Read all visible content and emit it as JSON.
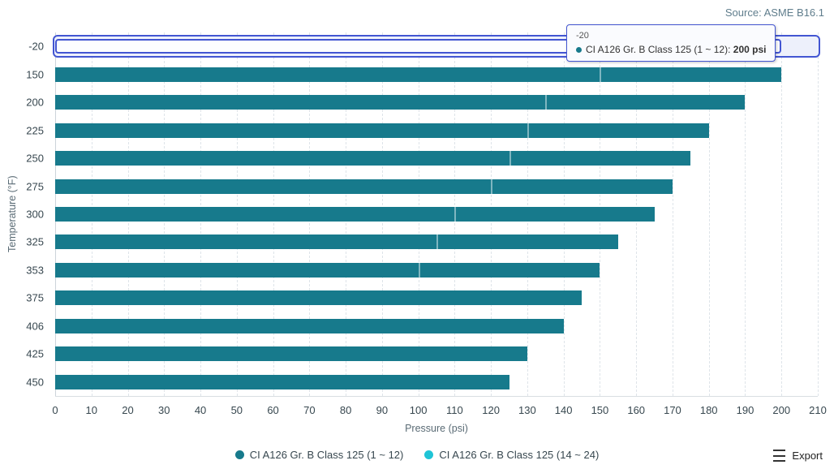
{
  "source": "Source: ASME B16.1",
  "export": {
    "label": "Export"
  },
  "tooltip": {
    "title": "-20",
    "series_label": "CI A126 Gr. B Class 125 (1 ~ 12)",
    "separator": ": ",
    "value": "200 psi"
  },
  "colors": {
    "series1": "#177a8c",
    "series2": "#1fc4d6",
    "hover_accent": "#4356d2",
    "grid": "#dee4e9",
    "text": "#37474f",
    "muted_text": "#5f7d8c"
  },
  "chart_data": {
    "type": "bar",
    "orientation": "horizontal",
    "title": "",
    "xlabel": "Pressure (psi)",
    "ylabel": "Temperature (°F)",
    "xlim": [
      0,
      210
    ],
    "x_ticks": [
      0,
      10,
      20,
      30,
      40,
      50,
      60,
      70,
      80,
      90,
      100,
      110,
      120,
      130,
      140,
      150,
      160,
      170,
      180,
      190,
      200,
      210
    ],
    "grid": "vertical-dashed",
    "legend_position": "bottom",
    "hovered_category": "-20",
    "categories": [
      "-20",
      "150",
      "200",
      "225",
      "250",
      "275",
      "300",
      "325",
      "353",
      "375",
      "406",
      "425",
      "450"
    ],
    "series": [
      {
        "name": "CI A126 Gr. B Class 125 (1 ~ 12)",
        "color": "#177a8c",
        "values": [
          200,
          200,
          190,
          180,
          175,
          170,
          165,
          155,
          150,
          145,
          140,
          130,
          125
        ]
      },
      {
        "name": "CI A126 Gr. B Class 125 (14 ~ 24)",
        "color": "#1fc4d6",
        "values": [
          150,
          150,
          135,
          130,
          125,
          120,
          110,
          105,
          100,
          null,
          null,
          null,
          null
        ]
      }
    ]
  }
}
